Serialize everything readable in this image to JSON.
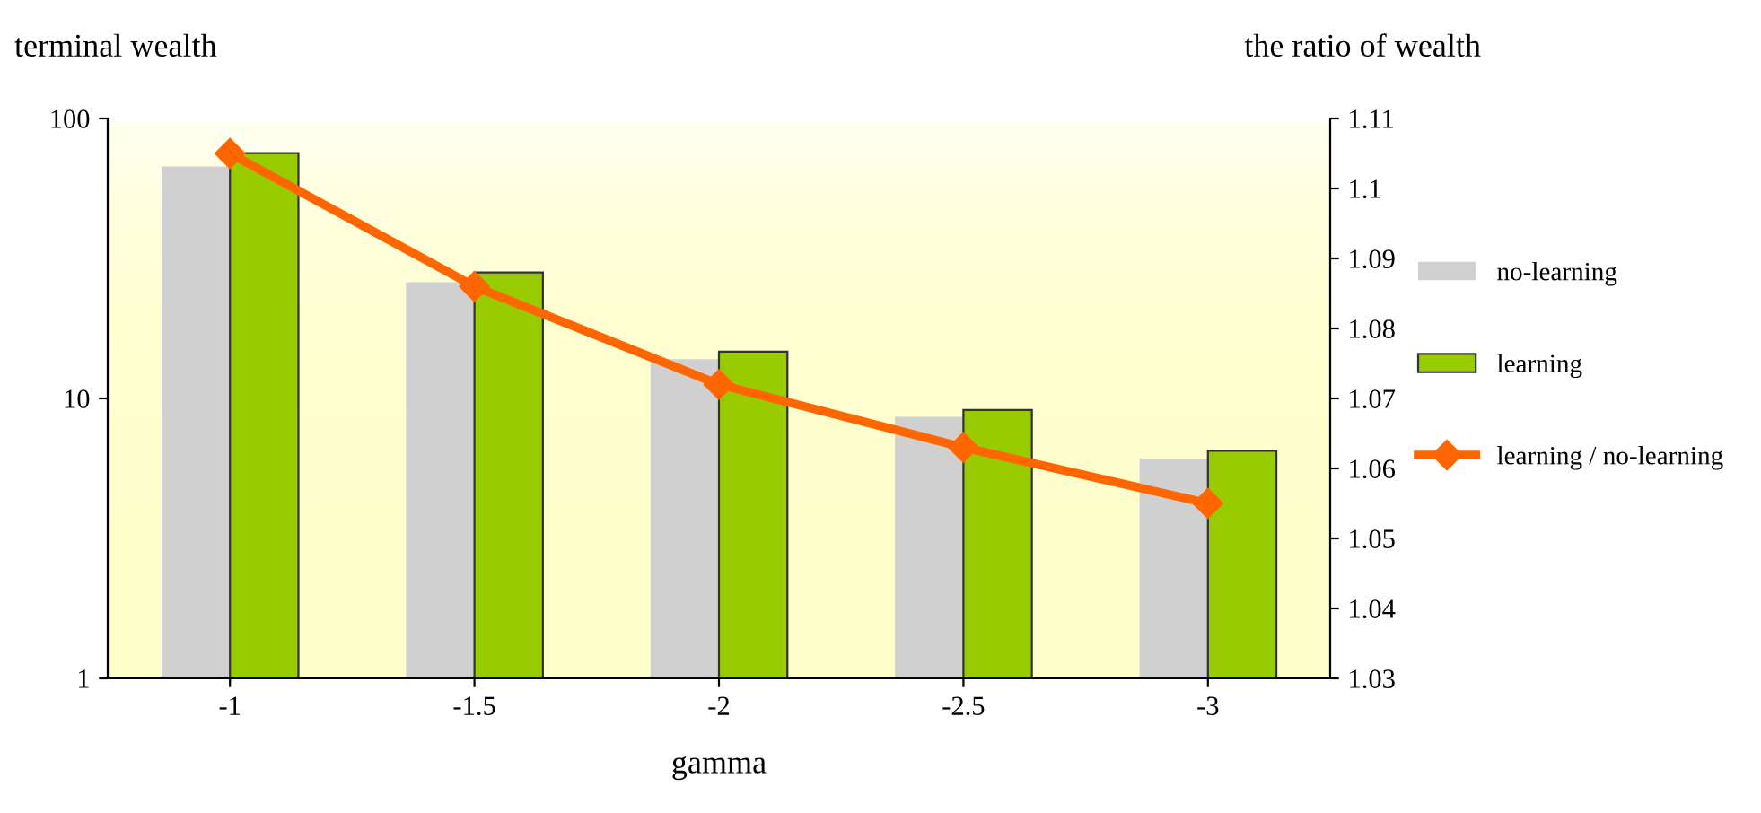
{
  "chart_data": {
    "type": "bar",
    "xlabel": "gamma",
    "ylabel": "terminal wealth",
    "y2label": "the ratio of wealth",
    "categories": [
      "-1",
      "-1.5",
      "-2",
      "-2.5",
      "-3"
    ],
    "series": [
      {
        "name": "no-learning",
        "color": "#d0d0d0",
        "values": [
          67.4,
          26.0,
          13.8,
          8.6,
          6.1
        ]
      },
      {
        "name": "learning",
        "color": "#99cc00",
        "values": [
          75.2,
          28.2,
          14.7,
          9.1,
          6.5
        ]
      },
      {
        "name": "learning / no-learning",
        "type": "line",
        "axis": "y2",
        "color": "#ff6600",
        "marker": "diamond",
        "values": [
          1.105,
          1.086,
          1.072,
          1.063,
          1.055
        ]
      }
    ],
    "log": "y",
    "ylim": [
      1,
      100
    ],
    "yticks": [
      1,
      10,
      100
    ],
    "y2lim": [
      1.03,
      1.11
    ],
    "y2ticks": [
      1.03,
      1.04,
      1.05,
      1.06,
      1.07,
      1.08,
      1.09,
      1.1,
      1.11
    ],
    "grid": false,
    "legend": "right"
  }
}
